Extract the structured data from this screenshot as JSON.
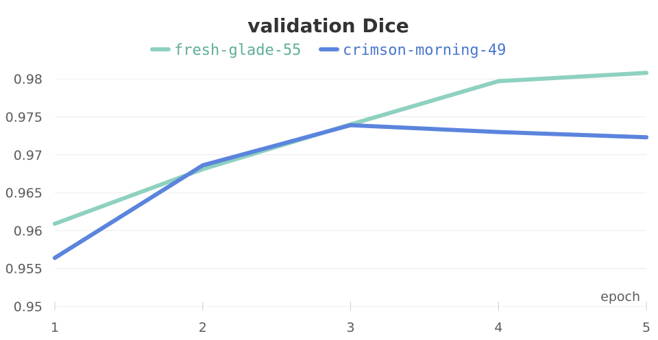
{
  "chart_data": {
    "type": "line",
    "title": "validation Dice",
    "xlabel": "epoch",
    "ylabel": "",
    "x": [
      1,
      2,
      3,
      4,
      5
    ],
    "xticks": [
      "1",
      "2",
      "3",
      "4",
      "5"
    ],
    "yticks": [
      "0.95",
      "0.955",
      "0.96",
      "0.965",
      "0.97",
      "0.975",
      "0.98"
    ],
    "xlim": [
      1,
      5
    ],
    "ylim": [
      0.95,
      0.982
    ],
    "legend_position": "top",
    "grid": true,
    "series": [
      {
        "name": "fresh-glade-55",
        "color": "#8ed1c0",
        "legend_text_color": "#5fae98",
        "values": [
          0.9609,
          0.9681,
          0.974,
          0.9797,
          0.9808
        ]
      },
      {
        "name": "crimson-morning-49",
        "color": "#5b84dd",
        "legend_text_color": "#4a76cc",
        "values": [
          0.9564,
          0.9686,
          0.9739,
          0.973,
          0.9723
        ]
      }
    ]
  }
}
